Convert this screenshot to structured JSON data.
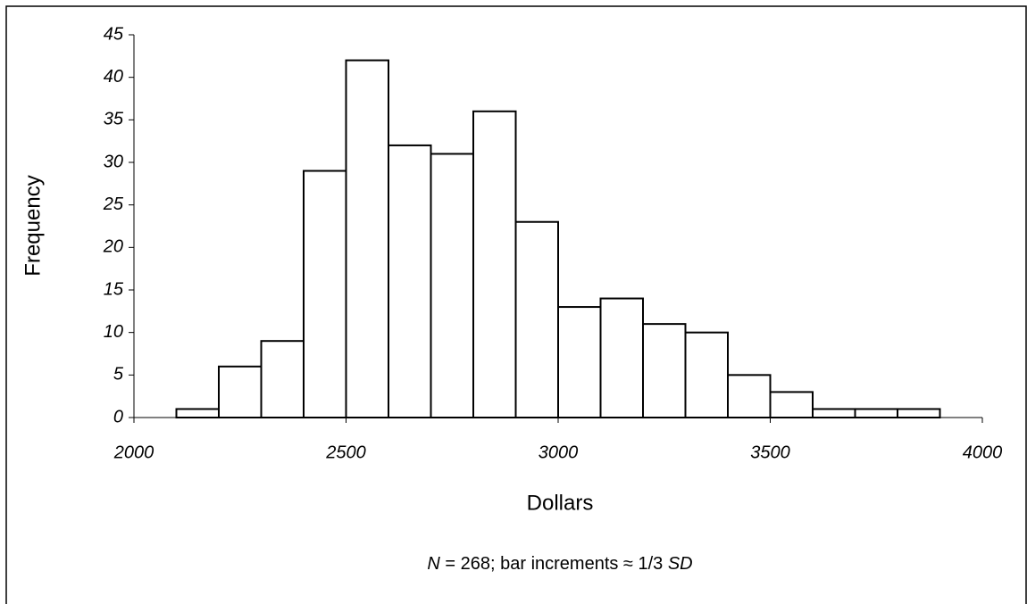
{
  "chart_data": {
    "type": "histogram",
    "bins": [
      2100,
      2200,
      2300,
      2400,
      2500,
      2600,
      2700,
      2800,
      2900,
      3000,
      3100,
      3200,
      3300,
      3400,
      3500,
      3600,
      3700,
      3800,
      3900,
      4000
    ],
    "values": [
      1,
      6,
      9,
      29,
      42,
      32,
      31,
      36,
      23,
      13,
      14,
      11,
      10,
      5,
      3,
      1,
      1,
      1,
      0
    ],
    "color": "#ffffff",
    "xlim": [
      2000,
      4000
    ],
    "xticks": [
      2000,
      2500,
      3000,
      3500,
      4000
    ],
    "ylim": [
      0,
      45
    ],
    "yticks": [
      0,
      5,
      10,
      15,
      20,
      25,
      30,
      35,
      40,
      45
    ],
    "x_label": "Dollars",
    "y_label": "Frequency",
    "note": [
      "N",
      " = 268; bar increments ≈ 1/3 ",
      "SD"
    ]
  }
}
